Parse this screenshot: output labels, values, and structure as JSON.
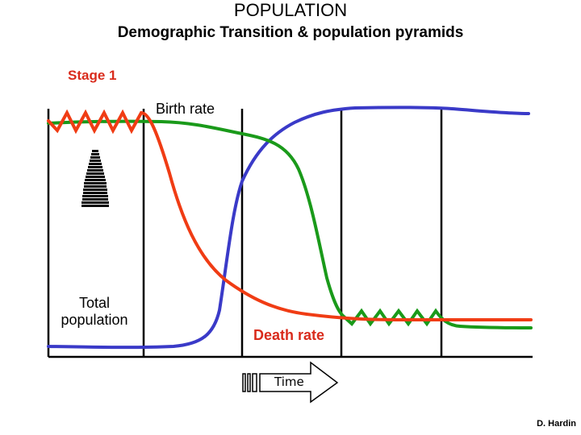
{
  "header": {
    "title": "POPULATION",
    "subtitle": "Demographic Transition & population pyramids"
  },
  "stage_label": "Stage 1",
  "labels": {
    "birth_rate": "Birth rate",
    "death_rate": "Death rate",
    "total_population": "Total population",
    "time": "Time"
  },
  "credit": "D. Hardin",
  "colors": {
    "birth_rate": "#1a9a1a",
    "death_rate": "#f03c14",
    "total_population": "#3a3ac8",
    "stage_text": "#d92b1c",
    "dividers": "#000000"
  }
}
